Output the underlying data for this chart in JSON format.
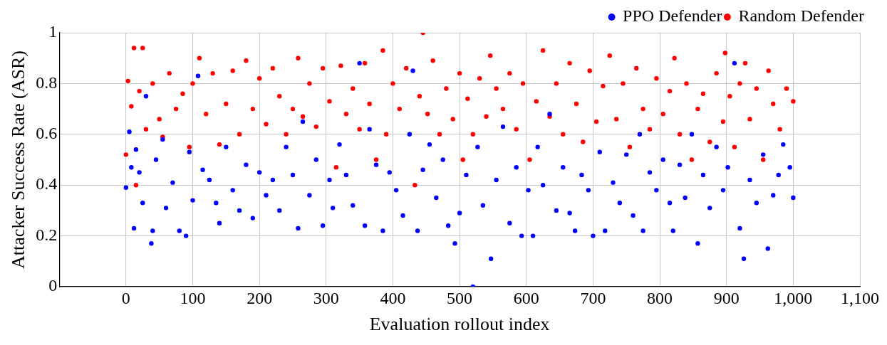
{
  "chart_data": {
    "type": "scatter",
    "xlabel": "Evaluation rollout index",
    "ylabel": "Attacker Success Rate (ASR)",
    "xlim": [
      -100,
      1100
    ],
    "xticks": [
      0,
      100,
      200,
      300,
      400,
      500,
      600,
      700,
      800,
      900,
      {
        "value": 1000,
        "label": "1,000"
      },
      {
        "value": 1100,
        "label": "1,100"
      }
    ],
    "ylim": [
      0,
      1
    ],
    "yticks": [
      0,
      0.2,
      0.4,
      0.6,
      0.8,
      1
    ],
    "grid": true,
    "legend": "top right",
    "marker": "circle",
    "series": [
      {
        "name": "PPO Defender",
        "color": "#0000ff",
        "x": [
          0,
          5,
          8,
          12,
          15,
          20,
          25,
          30,
          38,
          40,
          45,
          55,
          60,
          70,
          80,
          90,
          95,
          100,
          108,
          115,
          125,
          135,
          140,
          150,
          160,
          170,
          180,
          190,
          200,
          210,
          220,
          230,
          240,
          250,
          258,
          265,
          275,
          285,
          295,
          305,
          310,
          320,
          330,
          340,
          350,
          358,
          365,
          375,
          385,
          395,
          405,
          415,
          425,
          430,
          437,
          445,
          455,
          465,
          475,
          483,
          493,
          500,
          510,
          520,
          527,
          535,
          547,
          555,
          565,
          575,
          585,
          593,
          603,
          610,
          617,
          625,
          635,
          645,
          655,
          665,
          673,
          683,
          693,
          700,
          710,
          718,
          730,
          740,
          750,
          760,
          770,
          775,
          785,
          795,
          805,
          815,
          820,
          830,
          838,
          848,
          857,
          865,
          875,
          885,
          895,
          902,
          912,
          920,
          926,
          935,
          945,
          955,
          962,
          970,
          978,
          985,
          995,
          1000
        ],
        "values": [
          0.39,
          0.61,
          0.47,
          0.23,
          0.54,
          0.45,
          0.33,
          0.75,
          0.17,
          0.22,
          0.5,
          0.58,
          0.31,
          0.41,
          0.22,
          0.2,
          0.53,
          0.34,
          0.83,
          0.46,
          0.42,
          0.33,
          0.25,
          0.55,
          0.38,
          0.3,
          0.48,
          0.27,
          0.45,
          0.36,
          0.42,
          0.3,
          0.55,
          0.44,
          0.23,
          0.65,
          0.36,
          0.5,
          0.24,
          0.42,
          0.31,
          0.56,
          0.44,
          0.32,
          0.88,
          0.24,
          0.62,
          0.48,
          0.22,
          0.45,
          0.38,
          0.28,
          0.6,
          0.85,
          0.22,
          0.46,
          0.56,
          0.35,
          0.5,
          0.24,
          0.17,
          0.29,
          0.44,
          0,
          0.55,
          0.32,
          0.11,
          0.42,
          0.63,
          0.25,
          0.47,
          0.2,
          0.38,
          0.2,
          0.55,
          0.4,
          0.68,
          0.3,
          0.47,
          0.29,
          0.22,
          0.44,
          0.38,
          0.2,
          0.53,
          0.22,
          0.41,
          0.33,
          0.52,
          0.28,
          0.6,
          0.22,
          0.45,
          0.38,
          0.5,
          0.33,
          0.22,
          0.48,
          0.35,
          0.6,
          0.17,
          0.44,
          0.31,
          0.55,
          0.38,
          0.47,
          0.88,
          0.23,
          0.11,
          0.42,
          0.33,
          0.52,
          0.15,
          0.36,
          0.44,
          0.56,
          0.47,
          0.35
        ]
      },
      {
        "name": "Random Defender",
        "color": "#ff0000",
        "x": [
          0,
          3,
          8,
          12,
          15,
          20,
          25,
          30,
          40,
          50,
          55,
          65,
          75,
          85,
          95,
          100,
          110,
          120,
          130,
          140,
          150,
          160,
          170,
          180,
          190,
          200,
          210,
          220,
          230,
          240,
          250,
          258,
          265,
          275,
          285,
          295,
          305,
          315,
          322,
          330,
          340,
          350,
          358,
          365,
          375,
          385,
          390,
          400,
          410,
          420,
          433,
          440,
          445,
          452,
          460,
          470,
          480,
          490,
          500,
          505,
          512,
          520,
          530,
          540,
          546,
          555,
          565,
          575,
          585,
          595,
          605,
          615,
          625,
          635,
          645,
          655,
          665,
          675,
          685,
          695,
          705,
          715,
          725,
          735,
          745,
          755,
          765,
          775,
          785,
          795,
          805,
          815,
          822,
          830,
          840,
          848,
          857,
          865,
          875,
          885,
          895,
          898,
          905,
          912,
          920,
          928,
          935,
          945,
          955,
          963,
          970,
          980,
          990,
          1000
        ],
        "values": [
          0.52,
          0.81,
          0.71,
          0.94,
          0.4,
          0.77,
          0.94,
          0.62,
          0.8,
          0.66,
          0.59,
          0.84,
          0.7,
          0.76,
          0.55,
          0.8,
          0.9,
          0.68,
          0.84,
          0.56,
          0.72,
          0.85,
          0.6,
          0.89,
          0.7,
          0.82,
          0.64,
          0.86,
          0.75,
          0.6,
          0.7,
          0.9,
          0.67,
          0.8,
          0.63,
          0.86,
          0.73,
          0.47,
          0.87,
          0.68,
          0.78,
          0.62,
          0.88,
          0.72,
          0.5,
          0.93,
          0.6,
          0.8,
          0.7,
          0.86,
          0.4,
          0.75,
          1,
          0.68,
          0.89,
          0.6,
          0.78,
          0.66,
          0.84,
          0.5,
          0.74,
          0.6,
          0.82,
          0.67,
          0.91,
          0.78,
          0.7,
          0.84,
          0.62,
          0.8,
          0.5,
          0.73,
          0.93,
          0.67,
          0.8,
          0.6,
          0.88,
          0.72,
          0.57,
          0.85,
          0.65,
          0.79,
          0.91,
          0.66,
          0.8,
          0.55,
          0.86,
          0.7,
          0.62,
          0.82,
          0.68,
          0.77,
          0.9,
          0.6,
          0.8,
          0.5,
          0.7,
          0.76,
          0.57,
          0.84,
          0.65,
          0.92,
          0.75,
          0.55,
          0.8,
          0.88,
          0.66,
          0.78,
          0.5,
          0.85,
          0.72,
          0.62,
          0.78,
          0.73
        ]
      }
    ]
  }
}
